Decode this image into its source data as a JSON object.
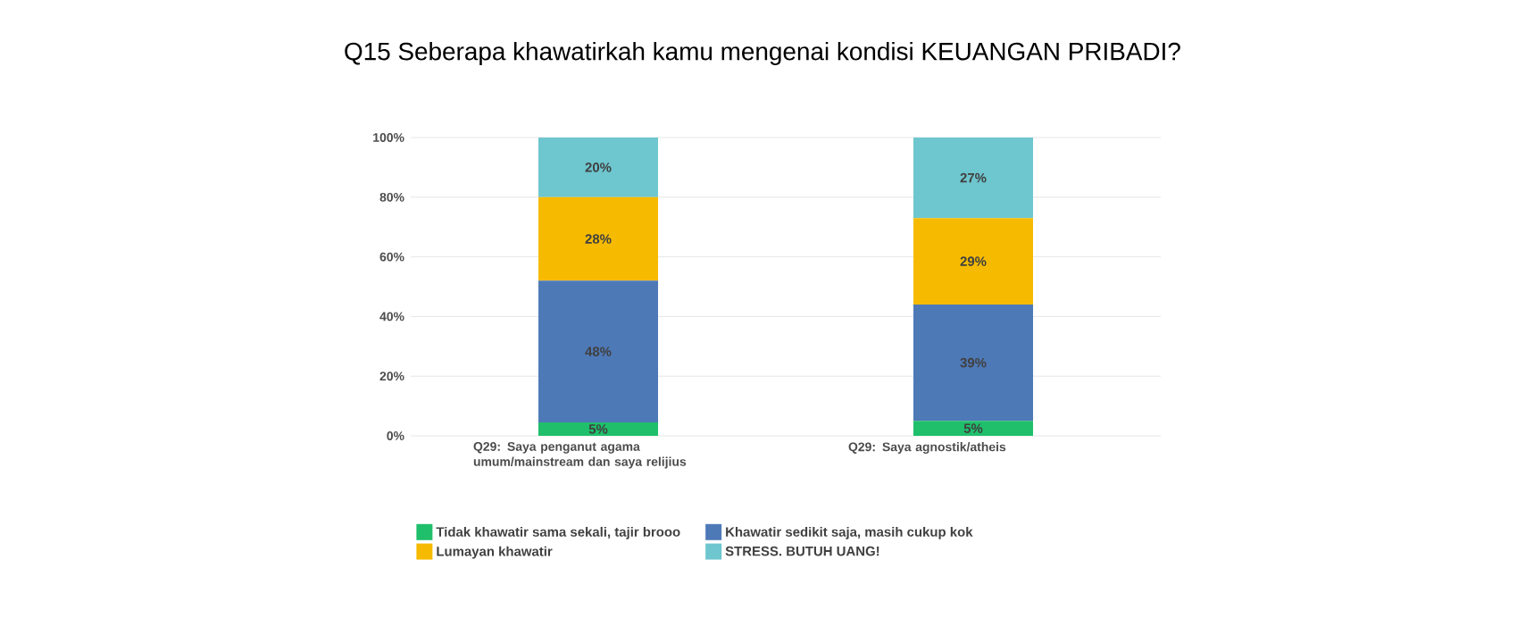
{
  "chart_data": {
    "type": "bar",
    "stacked": true,
    "title": "Q15 Seberapa khawatirkah kamu mengenai kondisi KEUANGAN PRIBADI?",
    "categories": [
      "Q29: Saya penganut agama umum/mainstream dan saya relijius",
      "Q29: Saya agnostik/atheis"
    ],
    "series": [
      {
        "name": "Tidak khawatir sama sekali, tajir brooo",
        "color": "#1fbf6b",
        "values": [
          4.5,
          5
        ],
        "value_labels": [
          "5%",
          "5%"
        ]
      },
      {
        "name": "Khawatir sedikit saja, masih cukup kok",
        "color": "#4e79b7",
        "values": [
          47.5,
          39
        ],
        "value_labels": [
          "48%",
          "39%"
        ]
      },
      {
        "name": "Lumayan khawatir",
        "color": "#f6bb00",
        "values": [
          28,
          29
        ],
        "value_labels": [
          "28%",
          "29%"
        ]
      },
      {
        "name": "STRESS. BUTUH UANG!",
        "color": "#6ec6cf",
        "values": [
          20,
          27
        ],
        "value_labels": [
          "20%",
          "27%"
        ]
      }
    ],
    "ylim": [
      0,
      100
    ],
    "yticks": [
      {
        "value": 0,
        "label": "0%"
      },
      {
        "value": 20,
        "label": "20%"
      },
      {
        "value": 40,
        "label": "40%"
      },
      {
        "value": 60,
        "label": "60%"
      },
      {
        "value": 80,
        "label": "80%"
      },
      {
        "value": 100,
        "label": "100%"
      }
    ],
    "grid": "y",
    "legend": "bottom"
  }
}
